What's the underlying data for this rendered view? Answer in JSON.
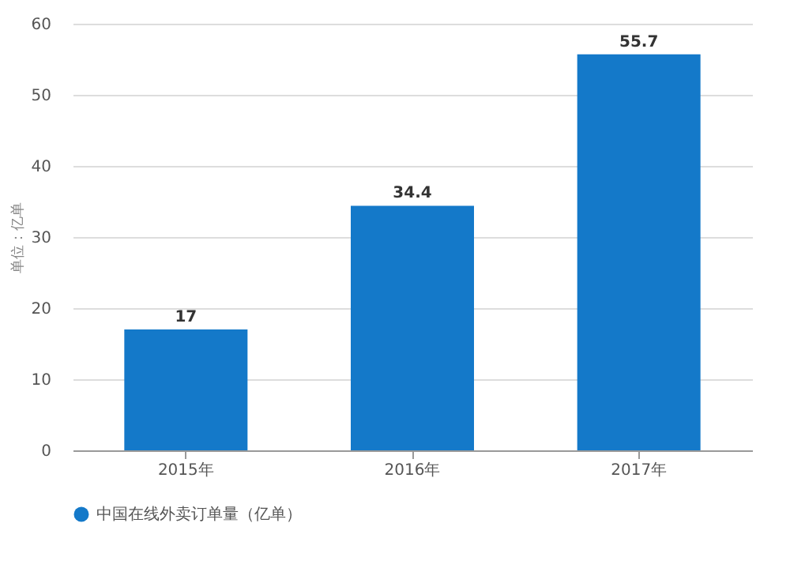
{
  "chart_data": {
    "type": "bar",
    "ylabel": "单位：亿单",
    "categories": [
      "2015年",
      "2016年",
      "2017年"
    ],
    "series": [
      {
        "name": "中国在线外卖订单量（亿单）",
        "color": "#1479c9",
        "values": [
          17,
          34.4,
          55.7
        ]
      }
    ],
    "ylim": [
      0,
      60
    ],
    "yticks": [
      0,
      10,
      20,
      30,
      40,
      50,
      60
    ],
    "grid": "y",
    "legend": "bottom",
    "data_labels": true
  }
}
